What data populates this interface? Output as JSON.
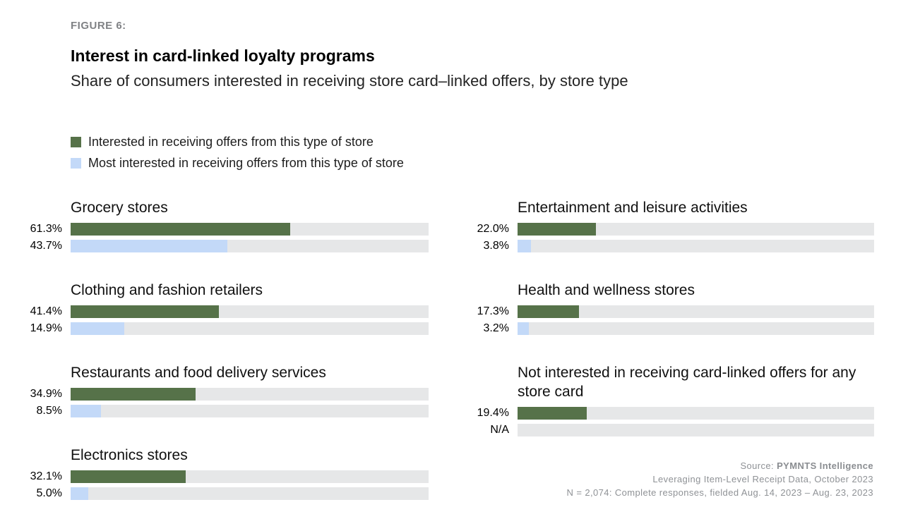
{
  "figure_label": "FIGURE 6:",
  "header": {
    "title": "Interest in card-linked loyalty programs",
    "subtitle": "Share of consumers interested in receiving store card–linked offers, by store type"
  },
  "legend": {
    "items": [
      {
        "label": "Interested in receiving offers from this type of store",
        "color": "#567249"
      },
      {
        "label": "Most interested in receiving offers from this type of store",
        "color": "#c3d9f8"
      }
    ]
  },
  "colors": {
    "interested_green": "#567249",
    "most_interested_blue": "#c3d9f8",
    "bar_track": "#e6e7e8",
    "figure_label_gray": "#808285",
    "footer_gray": "#8f9296"
  },
  "chart_data": {
    "type": "bar",
    "orientation": "horizontal",
    "title": "Interest in card-linked loyalty programs",
    "subtitle": "Share of consumers interested in receiving store card–linked offers, by store type",
    "value_axis": {
      "min": 0,
      "max": 100,
      "unit": "%"
    },
    "grid": false,
    "legend_position": "top-left",
    "series": [
      "Interested in receiving offers from this type of store",
      "Most interested in receiving offers from this type of store"
    ],
    "columns": [
      {
        "side": "left",
        "groups": [
          {
            "category": "Grocery stores",
            "rows": [
              {
                "series": "Interested in receiving offers from this type of store",
                "label": "61.3%",
                "value": 61.3
              },
              {
                "series": "Most interested in receiving offers from this type of store",
                "label": "43.7%",
                "value": 43.7
              }
            ]
          },
          {
            "category": "Clothing and fashion retailers",
            "rows": [
              {
                "series": "Interested in receiving offers from this type of store",
                "label": "41.4%",
                "value": 41.4
              },
              {
                "series": "Most interested in receiving offers from this type of store",
                "label": "14.9%",
                "value": 14.9
              }
            ]
          },
          {
            "category": "Restaurants and food delivery services",
            "rows": [
              {
                "series": "Interested in receiving offers from this type of store",
                "label": "34.9%",
                "value": 34.9
              },
              {
                "series": "Most interested in receiving offers from this type of store",
                "label": "8.5%",
                "value": 8.5
              }
            ]
          },
          {
            "category": "Electronics stores",
            "rows": [
              {
                "series": "Interested in receiving offers from this type of store",
                "label": "32.1%",
                "value": 32.1
              },
              {
                "series": "Most interested in receiving offers from this type of store",
                "label": "5.0%",
                "value": 5.0
              }
            ]
          }
        ]
      },
      {
        "side": "right",
        "groups": [
          {
            "category": "Entertainment and leisure activities",
            "rows": [
              {
                "series": "Interested in receiving offers from this type of store",
                "label": "22.0%",
                "value": 22.0
              },
              {
                "series": "Most interested in receiving offers from this type of store",
                "label": "3.8%",
                "value": 3.8
              }
            ]
          },
          {
            "category": "Health and wellness stores",
            "rows": [
              {
                "series": "Interested in receiving offers from this type of store",
                "label": "17.3%",
                "value": 17.3
              },
              {
                "series": "Most interested in receiving offers from this type of store",
                "label": "3.2%",
                "value": 3.2
              }
            ]
          },
          {
            "category": "Not interested in receiving card-linked offers for any store card",
            "rows": [
              {
                "series": "Interested in receiving offers from this type of store",
                "label": "19.4%",
                "value": 19.4
              },
              {
                "series": "Most interested in receiving offers from this type of store",
                "label": "N/A",
                "value": null
              }
            ]
          }
        ]
      }
    ]
  },
  "footer": {
    "source_prefix": "Source: ",
    "source_name": "PYMNTS Intelligence",
    "line2": "Leveraging Item-Level Receipt Data, October 2023",
    "line3": "N = 2,074: Complete responses, fielded Aug. 14, 2023 – Aug. 23, 2023"
  }
}
